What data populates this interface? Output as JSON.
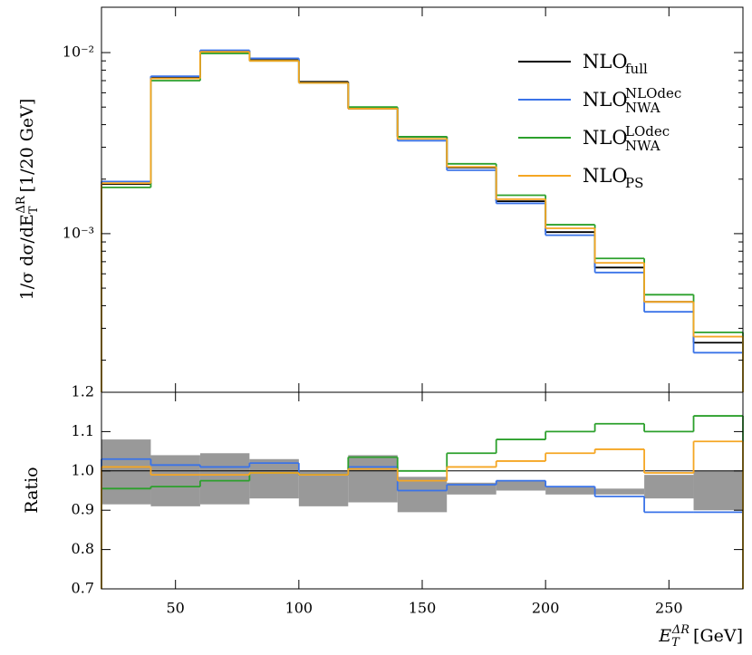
{
  "chart_data": [
    {
      "type": "histogram",
      "log_y": true,
      "legend": "upper right",
      "bins": [
        20,
        40,
        60,
        80,
        100,
        120,
        140,
        160,
        180,
        200,
        220,
        240,
        260,
        280
      ],
      "xlim": [
        20,
        280
      ],
      "ylim": [
        0.000133,
        0.0178
      ],
      "yticks": [
        {
          "value": 0.001,
          "label": "10⁻³"
        },
        {
          "value": 0.01,
          "label": "10⁻²"
        }
      ],
      "yminor": [
        0.0002,
        0.0003,
        0.0004,
        0.0005,
        0.0006,
        0.0007,
        0.0008,
        0.0009,
        0.002,
        0.003,
        0.004,
        0.005,
        0.006,
        0.007,
        0.008,
        0.009
      ],
      "ylabel": {
        "main": "1/σ dσ/dE",
        "sub": "T",
        "sup": "ΔR",
        "unit": "[1/20 GeV]"
      },
      "series": [
        {
          "name": "NLO",
          "sub": "full",
          "color": "#000000",
          "values": [
            0.00188,
            0.0073,
            0.0102,
            0.0091,
            0.0069,
            0.0049,
            0.00343,
            0.00232,
            0.00151,
            0.00102,
            0.00065,
            0.00042,
            0.00025
          ]
        },
        {
          "name": "NLO",
          "sub": "NWA",
          "sup": "NLOdec",
          "color": "#3a73e8",
          "values": [
            0.00194,
            0.0074,
            0.0103,
            0.0093,
            0.0068,
            0.00495,
            0.00326,
            0.00224,
            0.00147,
            0.00098,
            0.00061,
            0.00037,
            0.00022
          ]
        },
        {
          "name": "NLO",
          "sub": "NWA",
          "sup": "LOdec",
          "color": "#2ca02c",
          "values": [
            0.0018,
            0.007,
            0.0099,
            0.009,
            0.0068,
            0.005,
            0.00343,
            0.00243,
            0.00163,
            0.00112,
            0.00073,
            0.00046,
            0.000285
          ]
        },
        {
          "name": "NLO",
          "sub": "PS",
          "color": "#f5a623",
          "values": [
            0.0019,
            0.0072,
            0.0101,
            0.009,
            0.0068,
            0.0049,
            0.00334,
            0.00234,
            0.00155,
            0.00107,
            0.00069,
            0.00042,
            0.00027
          ]
        }
      ]
    },
    {
      "type": "histogram",
      "bins": [
        20,
        40,
        60,
        80,
        100,
        120,
        140,
        160,
        180,
        200,
        220,
        240,
        260,
        280
      ],
      "xlim": [
        20,
        280
      ],
      "xticks": [
        50,
        100,
        150,
        200,
        250
      ],
      "ylim": [
        0.7,
        1.2
      ],
      "yticks": [
        0.7,
        0.8,
        0.9,
        {
          "value": 1,
          "label": "1.0"
        },
        1.1,
        1.2
      ],
      "ref": 1,
      "ylabel": "Ratio",
      "xlabel": {
        "main": "E",
        "sub": "T",
        "sup": "ΔR",
        "unit": "[GeV]"
      },
      "band": {
        "color": "#999999",
        "low": [
          0.915,
          0.91,
          0.915,
          0.93,
          0.91,
          0.92,
          0.895,
          0.94,
          0.95,
          0.94,
          0.94,
          0.93,
          0.9
        ],
        "high": [
          1.08,
          1.04,
          1.045,
          1.03,
          1.0,
          1.04,
          0.985,
          0.97,
          0.975,
          0.96,
          0.955,
          0.99,
          1.0
        ]
      },
      "series": [
        {
          "color": "#3a73e8",
          "values": [
            1.03,
            1.015,
            1.01,
            1.02,
            0.99,
            1.01,
            0.95,
            0.965,
            0.975,
            0.96,
            0.935,
            0.895,
            0.895
          ]
        },
        {
          "color": "#2ca02c",
          "values": [
            0.955,
            0.96,
            0.975,
            0.995,
            0.99,
            1.035,
            1.0,
            1.045,
            1.08,
            1.1,
            1.12,
            1.1,
            1.14
          ]
        },
        {
          "color": "#f5a623",
          "values": [
            1.01,
            0.99,
            0.99,
            0.995,
            0.99,
            1.005,
            0.975,
            1.01,
            1.025,
            1.045,
            1.055,
            0.995,
            1.075
          ]
        }
      ]
    }
  ]
}
